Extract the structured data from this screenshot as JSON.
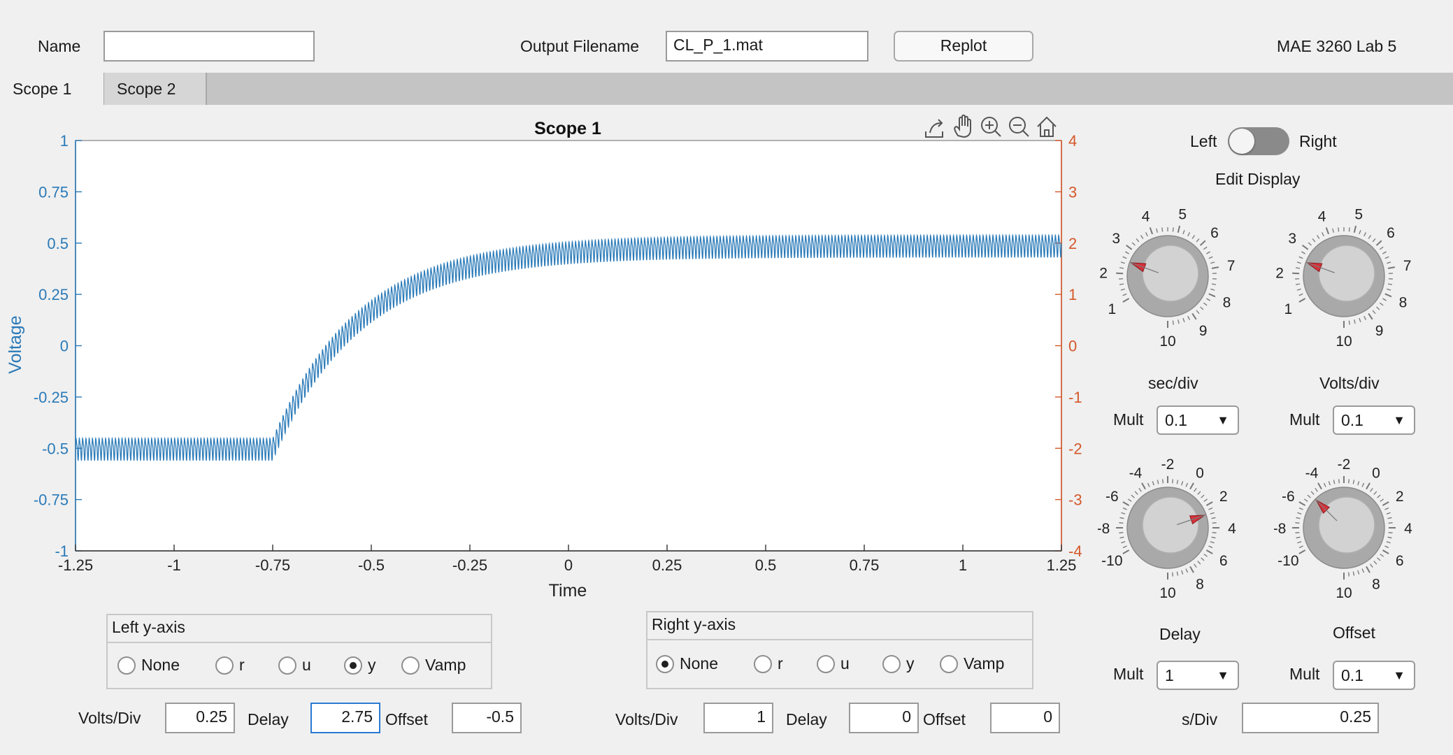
{
  "header": {
    "name_label": "Name",
    "name_value": "",
    "output_label": "Output Filename",
    "output_value": "CL_P_1.mat",
    "replot_label": "Replot",
    "app_title": "MAE 3260 Lab 5"
  },
  "tabs": [
    {
      "label": "Scope 1",
      "active": true
    },
    {
      "label": "Scope 2",
      "active": false
    }
  ],
  "toolbar_icons": [
    "export-icon",
    "pan-hand-icon",
    "zoom-in-icon",
    "zoom-out-icon",
    "home-icon"
  ],
  "chart_data": {
    "type": "line",
    "title": "Scope 1",
    "xlabel": "Time",
    "ylabel": "Voltage",
    "xlim": [
      -1.25,
      1.25
    ],
    "ylim": [
      -1,
      1
    ],
    "y2lim": [
      -4,
      4
    ],
    "xticks": [
      "-1.25",
      "-1",
      "-0.75",
      "-0.5",
      "-0.25",
      "0",
      "0.25",
      "0.5",
      "0.75",
      "1",
      "1.25"
    ],
    "yticks": [
      "-1",
      "-0.75",
      "-0.5",
      "-0.25",
      "0",
      "0.25",
      "0.5",
      "0.75",
      "1"
    ],
    "y2ticks": [
      "-4",
      "-3",
      "-2",
      "-1",
      "0",
      "1",
      "2",
      "3",
      "4"
    ],
    "grid": true,
    "series_color": "#2a7ab8",
    "right_axis_color": "#d4582a",
    "signal": {
      "initial_level": -0.5,
      "final_level": 0.49,
      "step_time": -0.75,
      "time_constant": 0.22,
      "ripple_amplitude": 0.06,
      "ripple_frequency": 120
    }
  },
  "display": {
    "left_label": "Left",
    "right_label": "Right",
    "edit_label": "Edit Display",
    "toggle_state": "Left"
  },
  "knobs": {
    "top_scale": [
      "1",
      "2",
      "3",
      "4",
      "5",
      "6",
      "7",
      "8",
      "9",
      "10"
    ],
    "bottom_scale": [
      "-10",
      "-8",
      "-6",
      "-4",
      "-2",
      "0",
      "2",
      "4",
      "6",
      "8",
      "10"
    ],
    "sec_div": {
      "label": "sec/div",
      "value": 2.5
    },
    "volts_div": {
      "label": "Volts/div",
      "value": 2.5
    },
    "delay": {
      "label": "Delay",
      "value": 2.75
    },
    "offset": {
      "label": "Offset",
      "value": -5
    }
  },
  "mults": {
    "label": "Mult",
    "sec_div": "0.1",
    "volts_div": "0.1",
    "delay": "1",
    "offset": "0.1"
  },
  "left_axis": {
    "title": "Left y-axis",
    "options": [
      "None",
      "r",
      "u",
      "y",
      "Vamp"
    ],
    "selected": "y",
    "volts_label": "Volts/Div",
    "volts_value": "0.25",
    "delay_label": "Delay",
    "delay_value": "2.75",
    "offset_label": "Offset",
    "offset_value": "-0.5"
  },
  "right_axis": {
    "title": "Right y-axis",
    "options": [
      "None",
      "r",
      "u",
      "y",
      "Vamp"
    ],
    "selected": "None",
    "volts_label": "Volts/Div",
    "volts_value": "1",
    "delay_label": "Delay",
    "delay_value": "0",
    "offset_label": "Offset",
    "offset_value": "0"
  },
  "sdiv": {
    "label": "s/Div",
    "value": "0.25"
  }
}
